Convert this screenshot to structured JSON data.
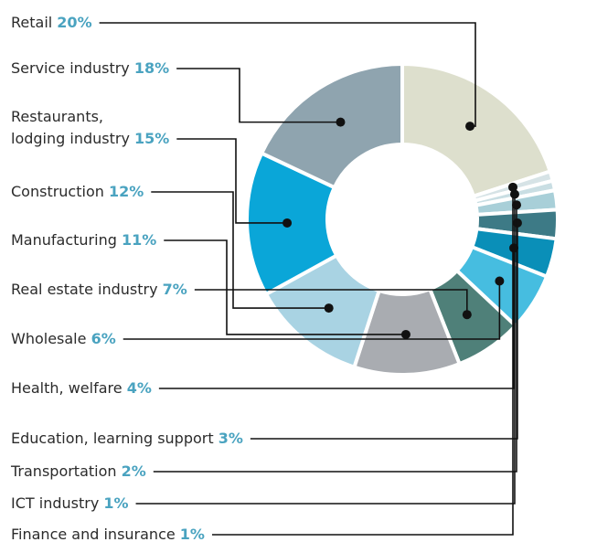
{
  "chart_data": {
    "type": "pie",
    "variant": "donut",
    "title": "",
    "categories": [
      "Retail",
      "Service industry",
      "Restaurants,\nlodging industry",
      "Construction",
      "Manufacturing",
      "Real estate industry",
      "Wholesale",
      "Health, welfare",
      "Education, learning support",
      "Transportation",
      "ICT industry",
      "Finance and insurance"
    ],
    "values": [
      20,
      18,
      15,
      12,
      11,
      7,
      6,
      4,
      3,
      2,
      1,
      1
    ],
    "value_labels": [
      "20%",
      "18%",
      "15%",
      "12%",
      "11%",
      "7%",
      "6%",
      "4%",
      "3%",
      "2%",
      "1%",
      "1%"
    ],
    "slice_order_clockwise_from_top": [
      "Retail",
      "Finance and insurance",
      "ICT industry",
      "Transportation",
      "Education, learning support",
      "Health, welfare",
      "Wholesale",
      "Real estate industry",
      "Manufacturing",
      "Construction",
      "Restaurants,\nlodging industry",
      "Service industry"
    ],
    "colors": {
      "Retail": "#dddfcd",
      "Finance and insurance": "#d6e3e6",
      "ICT industry": "#c9dee3",
      "Transportation": "#a8cfd8",
      "Education, learning support": "#3d7a86",
      "Health, welfare": "#0a8fb8",
      "Wholesale": "#46bde0",
      "Real estate industry": "#4f8079",
      "Manufacturing": "#a9acb1",
      "Construction": "#a9d3e3",
      "Restaurants,\nlodging industry": "#0aa6d8",
      "Service industry": "#8fa4af"
    },
    "legend": "left"
  }
}
